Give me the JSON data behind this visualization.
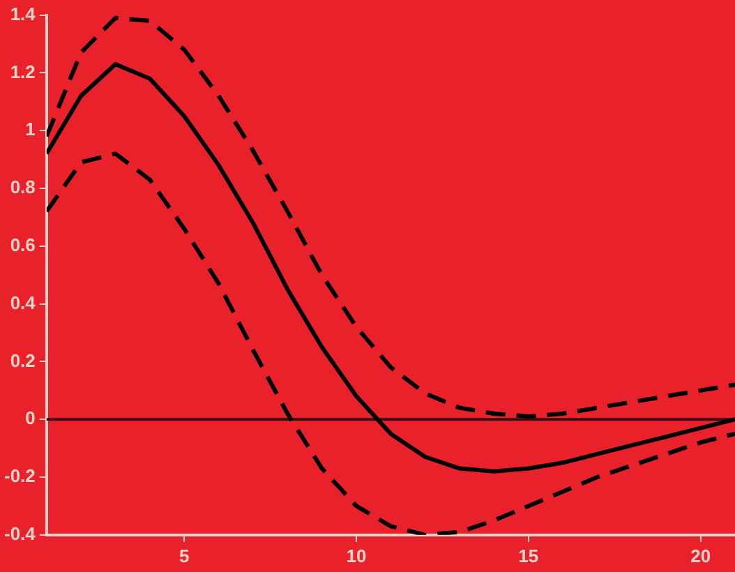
{
  "chart_data": {
    "type": "line",
    "x": [
      1,
      2,
      3,
      4,
      5,
      6,
      7,
      8,
      9,
      10,
      11,
      12,
      13,
      14,
      15,
      16,
      17,
      18,
      19,
      20,
      21
    ],
    "series": [
      {
        "color": "#000000",
        "line_style": "solid",
        "values": [
          0.92,
          1.12,
          1.23,
          1.18,
          1.05,
          0.88,
          0.68,
          0.45,
          0.25,
          0.08,
          -0.05,
          -0.13,
          -0.17,
          -0.18,
          -0.17,
          -0.15,
          -0.12,
          -0.09,
          -0.06,
          -0.03,
          0.0
        ]
      },
      {
        "color": "#000000",
        "line_style": "dashed",
        "values": [
          0.98,
          1.27,
          1.39,
          1.38,
          1.28,
          1.12,
          0.93,
          0.72,
          0.5,
          0.32,
          0.18,
          0.09,
          0.04,
          0.02,
          0.01,
          0.02,
          0.04,
          0.06,
          0.08,
          0.1,
          0.12
        ]
      },
      {
        "color": "#000000",
        "line_style": "dashed",
        "values": [
          0.72,
          0.89,
          0.92,
          0.83,
          0.66,
          0.47,
          0.24,
          0.02,
          -0.17,
          -0.3,
          -0.37,
          -0.4,
          -0.39,
          -0.35,
          -0.3,
          -0.25,
          -0.2,
          -0.16,
          -0.12,
          -0.08,
          -0.05
        ]
      }
    ],
    "xlim": [
      1,
      21
    ],
    "xticks": [
      5,
      10,
      15,
      20
    ],
    "ylim": [
      -0.4,
      1.4
    ],
    "yticks": [
      -0.4,
      -0.2,
      0,
      0.2,
      0.4,
      0.6,
      0.8,
      1,
      1.2,
      1.4
    ],
    "ref_lines": [
      {
        "axis": "y",
        "value": 0,
        "color": "#3a1010",
        "line_style": "solid"
      }
    ],
    "grid": false,
    "legend": false,
    "marker": "none"
  }
}
